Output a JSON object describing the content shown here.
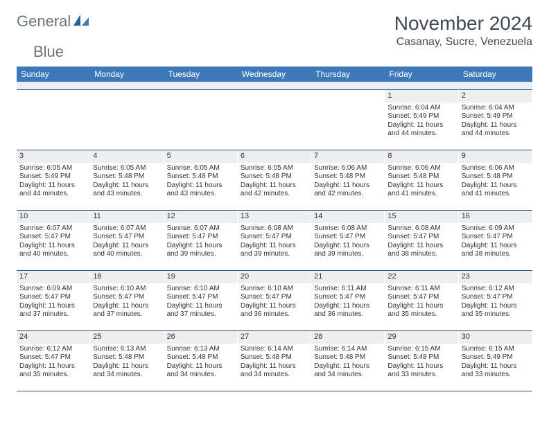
{
  "brand": {
    "name_a": "General",
    "name_b": "Blue"
  },
  "title": "November 2024",
  "location": "Casanay, Sucre, Venezuela",
  "colors": {
    "header_bg": "#3d79b8",
    "header_text": "#ffffff",
    "daynum_bg": "#eceeef",
    "rule": "#2b4c7a",
    "logo_gray": "#6c7480",
    "logo_blue": "#3d79b8",
    "text": "#333333",
    "bg": "#ffffff"
  },
  "fonts": {
    "base_family": "Arial, Helvetica, sans-serif",
    "title_pt": 28,
    "location_pt": 16,
    "dayhead_pt": 12,
    "cell_pt": 10
  },
  "day_labels": [
    "Sunday",
    "Monday",
    "Tuesday",
    "Wednesday",
    "Thursday",
    "Friday",
    "Saturday"
  ],
  "weeks": [
    [
      null,
      null,
      null,
      null,
      null,
      {
        "n": "1",
        "sunrise": "Sunrise: 6:04 AM",
        "sunset": "Sunset: 5:49 PM",
        "day1": "Daylight: 11 hours",
        "day2": "and 44 minutes."
      },
      {
        "n": "2",
        "sunrise": "Sunrise: 6:04 AM",
        "sunset": "Sunset: 5:49 PM",
        "day1": "Daylight: 11 hours",
        "day2": "and 44 minutes."
      }
    ],
    [
      {
        "n": "3",
        "sunrise": "Sunrise: 6:05 AM",
        "sunset": "Sunset: 5:49 PM",
        "day1": "Daylight: 11 hours",
        "day2": "and 44 minutes."
      },
      {
        "n": "4",
        "sunrise": "Sunrise: 6:05 AM",
        "sunset": "Sunset: 5:48 PM",
        "day1": "Daylight: 11 hours",
        "day2": "and 43 minutes."
      },
      {
        "n": "5",
        "sunrise": "Sunrise: 6:05 AM",
        "sunset": "Sunset: 5:48 PM",
        "day1": "Daylight: 11 hours",
        "day2": "and 43 minutes."
      },
      {
        "n": "6",
        "sunrise": "Sunrise: 6:05 AM",
        "sunset": "Sunset: 5:48 PM",
        "day1": "Daylight: 11 hours",
        "day2": "and 42 minutes."
      },
      {
        "n": "7",
        "sunrise": "Sunrise: 6:06 AM",
        "sunset": "Sunset: 5:48 PM",
        "day1": "Daylight: 11 hours",
        "day2": "and 42 minutes."
      },
      {
        "n": "8",
        "sunrise": "Sunrise: 6:06 AM",
        "sunset": "Sunset: 5:48 PM",
        "day1": "Daylight: 11 hours",
        "day2": "and 41 minutes."
      },
      {
        "n": "9",
        "sunrise": "Sunrise: 6:06 AM",
        "sunset": "Sunset: 5:48 PM",
        "day1": "Daylight: 11 hours",
        "day2": "and 41 minutes."
      }
    ],
    [
      {
        "n": "10",
        "sunrise": "Sunrise: 6:07 AM",
        "sunset": "Sunset: 5:47 PM",
        "day1": "Daylight: 11 hours",
        "day2": "and 40 minutes."
      },
      {
        "n": "11",
        "sunrise": "Sunrise: 6:07 AM",
        "sunset": "Sunset: 5:47 PM",
        "day1": "Daylight: 11 hours",
        "day2": "and 40 minutes."
      },
      {
        "n": "12",
        "sunrise": "Sunrise: 6:07 AM",
        "sunset": "Sunset: 5:47 PM",
        "day1": "Daylight: 11 hours",
        "day2": "and 39 minutes."
      },
      {
        "n": "13",
        "sunrise": "Sunrise: 6:08 AM",
        "sunset": "Sunset: 5:47 PM",
        "day1": "Daylight: 11 hours",
        "day2": "and 39 minutes."
      },
      {
        "n": "14",
        "sunrise": "Sunrise: 6:08 AM",
        "sunset": "Sunset: 5:47 PM",
        "day1": "Daylight: 11 hours",
        "day2": "and 39 minutes."
      },
      {
        "n": "15",
        "sunrise": "Sunrise: 6:08 AM",
        "sunset": "Sunset: 5:47 PM",
        "day1": "Daylight: 11 hours",
        "day2": "and 38 minutes."
      },
      {
        "n": "16",
        "sunrise": "Sunrise: 6:09 AM",
        "sunset": "Sunset: 5:47 PM",
        "day1": "Daylight: 11 hours",
        "day2": "and 38 minutes."
      }
    ],
    [
      {
        "n": "17",
        "sunrise": "Sunrise: 6:09 AM",
        "sunset": "Sunset: 5:47 PM",
        "day1": "Daylight: 11 hours",
        "day2": "and 37 minutes."
      },
      {
        "n": "18",
        "sunrise": "Sunrise: 6:10 AM",
        "sunset": "Sunset: 5:47 PM",
        "day1": "Daylight: 11 hours",
        "day2": "and 37 minutes."
      },
      {
        "n": "19",
        "sunrise": "Sunrise: 6:10 AM",
        "sunset": "Sunset: 5:47 PM",
        "day1": "Daylight: 11 hours",
        "day2": "and 37 minutes."
      },
      {
        "n": "20",
        "sunrise": "Sunrise: 6:10 AM",
        "sunset": "Sunset: 5:47 PM",
        "day1": "Daylight: 11 hours",
        "day2": "and 36 minutes."
      },
      {
        "n": "21",
        "sunrise": "Sunrise: 6:11 AM",
        "sunset": "Sunset: 5:47 PM",
        "day1": "Daylight: 11 hours",
        "day2": "and 36 minutes."
      },
      {
        "n": "22",
        "sunrise": "Sunrise: 6:11 AM",
        "sunset": "Sunset: 5:47 PM",
        "day1": "Daylight: 11 hours",
        "day2": "and 35 minutes."
      },
      {
        "n": "23",
        "sunrise": "Sunrise: 6:12 AM",
        "sunset": "Sunset: 5:47 PM",
        "day1": "Daylight: 11 hours",
        "day2": "and 35 minutes."
      }
    ],
    [
      {
        "n": "24",
        "sunrise": "Sunrise: 6:12 AM",
        "sunset": "Sunset: 5:47 PM",
        "day1": "Daylight: 11 hours",
        "day2": "and 35 minutes."
      },
      {
        "n": "25",
        "sunrise": "Sunrise: 6:13 AM",
        "sunset": "Sunset: 5:48 PM",
        "day1": "Daylight: 11 hours",
        "day2": "and 34 minutes."
      },
      {
        "n": "26",
        "sunrise": "Sunrise: 6:13 AM",
        "sunset": "Sunset: 5:48 PM",
        "day1": "Daylight: 11 hours",
        "day2": "and 34 minutes."
      },
      {
        "n": "27",
        "sunrise": "Sunrise: 6:14 AM",
        "sunset": "Sunset: 5:48 PM",
        "day1": "Daylight: 11 hours",
        "day2": "and 34 minutes."
      },
      {
        "n": "28",
        "sunrise": "Sunrise: 6:14 AM",
        "sunset": "Sunset: 5:48 PM",
        "day1": "Daylight: 11 hours",
        "day2": "and 34 minutes."
      },
      {
        "n": "29",
        "sunrise": "Sunrise: 6:15 AM",
        "sunset": "Sunset: 5:48 PM",
        "day1": "Daylight: 11 hours",
        "day2": "and 33 minutes."
      },
      {
        "n": "30",
        "sunrise": "Sunrise: 6:15 AM",
        "sunset": "Sunset: 5:49 PM",
        "day1": "Daylight: 11 hours",
        "day2": "and 33 minutes."
      }
    ]
  ]
}
